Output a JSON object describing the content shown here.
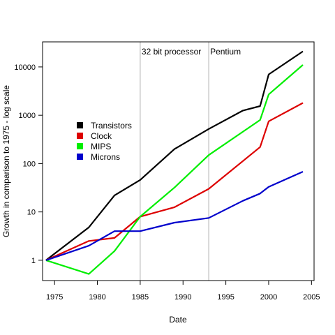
{
  "chart_data": {
    "type": "line",
    "xlabel": "Date",
    "ylabel": "Growth in comparison to 1975 - log scale",
    "xlim": [
      1973.6,
      2005.3
    ],
    "ylim": [
      0.38,
      33000
    ],
    "y_scale": "log",
    "grid": false,
    "legend_position": "left",
    "x_ticks": [
      1975,
      1980,
      1985,
      1990,
      1995,
      2000,
      2005
    ],
    "y_ticks": [
      {
        "value": 1,
        "label": "1"
      },
      {
        "value": 10,
        "label": "10"
      },
      {
        "value": 100,
        "label": "100"
      },
      {
        "value": 1000,
        "label": "1000"
      },
      {
        "value": 10000,
        "label": "10000"
      }
    ],
    "vlines": [
      {
        "x": 1985,
        "label": "32 bit processor",
        "color": "#b0b0b0"
      },
      {
        "x": 1993,
        "label": "Pentium",
        "color": "#b0b0b0"
      }
    ],
    "series": [
      {
        "name": "Transistors",
        "color": "#000000",
        "x": [
          1974,
          1979,
          1982,
          1985,
          1989,
          1993,
          1997,
          1999,
          2000,
          2004
        ],
        "y": [
          1,
          4.8,
          22,
          46,
          200,
          520,
          1250,
          1550,
          7000,
          21000
        ]
      },
      {
        "name": "Clock",
        "color": "#dd0000",
        "x": [
          1974,
          1979,
          1982,
          1985,
          1989,
          1993,
          1999,
          2000,
          2004
        ],
        "y": [
          1,
          2.5,
          2.9,
          8,
          12.5,
          30,
          220,
          750,
          1800
        ]
      },
      {
        "name": "MIPS",
        "color": "#00ee00",
        "x": [
          1974,
          1979,
          1982,
          1985,
          1989,
          1993,
          1999,
          2000,
          2004
        ],
        "y": [
          1,
          0.52,
          1.55,
          8,
          32,
          150,
          800,
          2700,
          11000
        ]
      },
      {
        "name": "Microns",
        "color": "#0000cc",
        "x": [
          1974,
          1979,
          1982,
          1985,
          1989,
          1993,
          1997,
          1999,
          2000,
          2004
        ],
        "y": [
          1,
          2,
          4,
          4,
          6,
          7.5,
          17,
          24,
          33,
          68
        ]
      }
    ]
  }
}
